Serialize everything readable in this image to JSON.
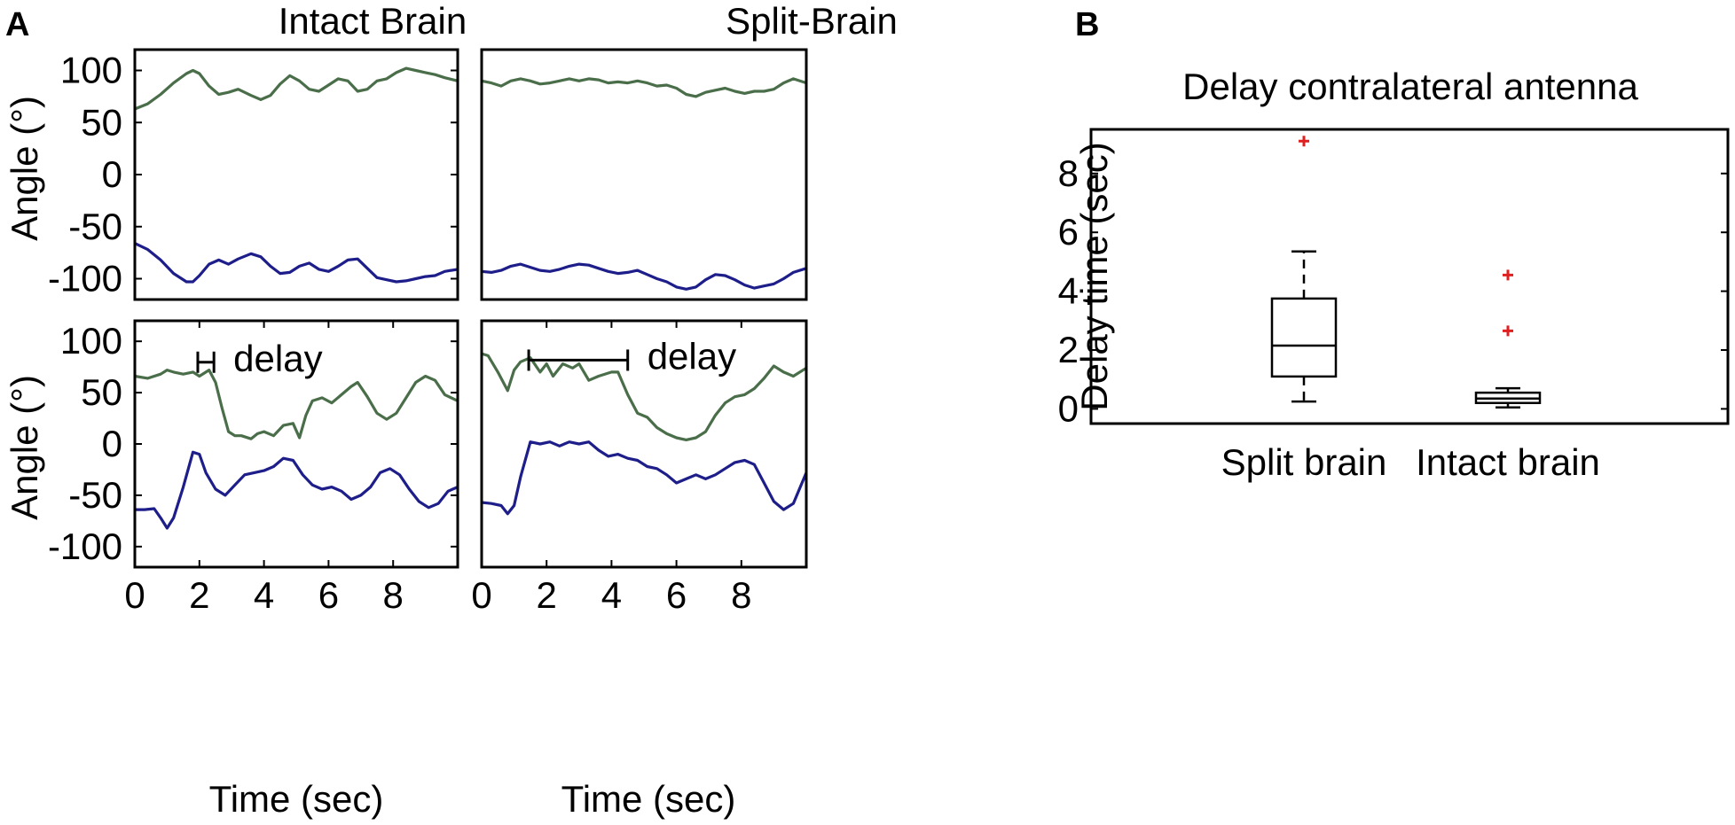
{
  "figure": {
    "panel_a_label": "A",
    "panel_b_label": "B",
    "col_titles": [
      "Intact Brain",
      "Split-Brain"
    ],
    "y_axis_label": "Angle (°)",
    "x_axis_label": "Time (sec)",
    "delay_label": "delay"
  },
  "colors": {
    "ipsilateral": "#4a6e4a",
    "contralateral": "#1e1e8a",
    "outlier": "#e02020",
    "axes": "#000000"
  },
  "chart_data": [
    {
      "id": "intact-top",
      "type": "line",
      "title": "Intact Brain",
      "xlabel": "",
      "ylabel": "Angle (°)",
      "xlim": [
        0,
        10
      ],
      "ylim": [
        -120,
        120
      ],
      "xticks": [],
      "yticks": [
        100,
        50,
        0,
        -50,
        -100
      ],
      "series": [
        {
          "name": "green",
          "x": [
            0,
            0.4,
            0.8,
            1.2,
            1.6,
            1.8,
            2.0,
            2.3,
            2.6,
            2.9,
            3.2,
            3.6,
            3.9,
            4.2,
            4.5,
            4.8,
            5.1,
            5.4,
            5.7,
            6.0,
            6.3,
            6.6,
            6.9,
            7.2,
            7.5,
            7.8,
            8.1,
            8.4,
            8.7,
            9.0,
            9.3,
            9.6,
            10.0
          ],
          "y": [
            63,
            68,
            77,
            88,
            97,
            100,
            97,
            85,
            77,
            79,
            82,
            76,
            72,
            76,
            87,
            95,
            90,
            82,
            80,
            86,
            92,
            90,
            80,
            82,
            90,
            92,
            98,
            102,
            100,
            98,
            96,
            93,
            90
          ]
        },
        {
          "name": "blue",
          "x": [
            0,
            0.4,
            0.8,
            1.2,
            1.6,
            1.8,
            2.0,
            2.3,
            2.6,
            2.9,
            3.2,
            3.6,
            3.9,
            4.2,
            4.5,
            4.8,
            5.1,
            5.4,
            5.7,
            6.0,
            6.3,
            6.6,
            6.9,
            7.2,
            7.5,
            7.8,
            8.1,
            8.4,
            8.7,
            9.0,
            9.3,
            9.6,
            10.0
          ],
          "y": [
            -66,
            -72,
            -82,
            -95,
            -103,
            -103,
            -97,
            -86,
            -82,
            -86,
            -81,
            -76,
            -79,
            -88,
            -95,
            -94,
            -88,
            -85,
            -91,
            -93,
            -88,
            -82,
            -81,
            -90,
            -99,
            -101,
            -103,
            -102,
            -100,
            -98,
            -97,
            -93,
            -91
          ]
        }
      ]
    },
    {
      "id": "split-top",
      "type": "line",
      "title": "Split-Brain",
      "xlabel": "",
      "ylabel": "",
      "xlim": [
        0,
        10
      ],
      "ylim": [
        -120,
        120
      ],
      "xticks": [],
      "yticks": [],
      "series": [
        {
          "name": "green",
          "x": [
            0,
            0.3,
            0.6,
            0.9,
            1.2,
            1.5,
            1.8,
            2.1,
            2.4,
            2.7,
            3.0,
            3.3,
            3.6,
            3.9,
            4.2,
            4.5,
            4.8,
            5.1,
            5.4,
            5.7,
            6.0,
            6.3,
            6.6,
            6.9,
            7.2,
            7.5,
            7.8,
            8.1,
            8.4,
            8.7,
            9.0,
            9.3,
            9.6,
            10.0
          ],
          "y": [
            90,
            88,
            85,
            90,
            92,
            90,
            87,
            88,
            90,
            92,
            90,
            92,
            91,
            88,
            89,
            88,
            90,
            88,
            85,
            86,
            83,
            77,
            75,
            79,
            81,
            83,
            80,
            78,
            80,
            80,
            82,
            88,
            92,
            88
          ]
        },
        {
          "name": "blue",
          "x": [
            0,
            0.3,
            0.6,
            0.9,
            1.2,
            1.5,
            1.8,
            2.1,
            2.4,
            2.7,
            3.0,
            3.3,
            3.6,
            3.9,
            4.2,
            4.5,
            4.8,
            5.1,
            5.4,
            5.7,
            6.0,
            6.3,
            6.6,
            6.9,
            7.2,
            7.5,
            7.8,
            8.1,
            8.4,
            8.7,
            9.0,
            9.3,
            9.6,
            10.0
          ],
          "y": [
            -93,
            -94,
            -92,
            -88,
            -86,
            -89,
            -92,
            -93,
            -91,
            -88,
            -86,
            -87,
            -90,
            -93,
            -95,
            -94,
            -92,
            -96,
            -100,
            -103,
            -108,
            -110,
            -108,
            -101,
            -96,
            -97,
            -101,
            -106,
            -109,
            -107,
            -105,
            -100,
            -94,
            -90
          ]
        }
      ]
    },
    {
      "id": "intact-bottom",
      "type": "line",
      "title": "",
      "xlabel": "Time (sec)",
      "ylabel": "Angle (°)",
      "xlim": [
        0,
        10
      ],
      "ylim": [
        -120,
        120
      ],
      "xticks": [
        0,
        2,
        4,
        6,
        8
      ],
      "yticks": [
        100,
        50,
        0,
        -50,
        -100
      ],
      "delay_marker": {
        "x_start": 1.95,
        "x_end": 2.45,
        "y": 90,
        "label": "delay"
      },
      "series": [
        {
          "name": "green",
          "x": [
            0,
            0.4,
            0.8,
            1.0,
            1.2,
            1.5,
            1.8,
            2.0,
            2.3,
            2.5,
            2.7,
            2.9,
            3.1,
            3.3,
            3.6,
            3.8,
            4.0,
            4.3,
            4.6,
            4.9,
            5.1,
            5.3,
            5.5,
            5.8,
            6.1,
            6.4,
            6.7,
            6.9,
            7.2,
            7.5,
            7.8,
            8.1,
            8.4,
            8.7,
            9.0,
            9.3,
            9.6,
            10.0
          ],
          "y": [
            66,
            64,
            68,
            72,
            70,
            68,
            70,
            66,
            72,
            60,
            35,
            12,
            8,
            8,
            5,
            10,
            12,
            8,
            18,
            20,
            6,
            28,
            42,
            45,
            40,
            48,
            56,
            60,
            46,
            30,
            24,
            30,
            45,
            60,
            66,
            62,
            48,
            42
          ]
        },
        {
          "name": "blue",
          "x": [
            0,
            0.3,
            0.6,
            0.8,
            1.0,
            1.2,
            1.5,
            1.8,
            2.0,
            2.2,
            2.5,
            2.8,
            3.1,
            3.4,
            3.7,
            4.0,
            4.3,
            4.6,
            4.9,
            5.2,
            5.5,
            5.8,
            6.1,
            6.4,
            6.7,
            7.0,
            7.3,
            7.6,
            7.9,
            8.2,
            8.5,
            8.8,
            9.1,
            9.4,
            9.7,
            10.0
          ],
          "y": [
            -64,
            -64,
            -63,
            -72,
            -82,
            -72,
            -42,
            -8,
            -10,
            -28,
            -44,
            -50,
            -40,
            -30,
            -28,
            -26,
            -22,
            -14,
            -16,
            -30,
            -40,
            -44,
            -42,
            -46,
            -54,
            -50,
            -42,
            -28,
            -24,
            -30,
            -44,
            -56,
            -62,
            -58,
            -46,
            -42
          ]
        }
      ]
    },
    {
      "id": "split-bottom",
      "type": "line",
      "title": "",
      "xlabel": "Time (sec)",
      "ylabel": "",
      "xlim": [
        0,
        10
      ],
      "ylim": [
        -120,
        120
      ],
      "xticks": [
        0,
        2,
        4,
        6,
        8
      ],
      "yticks": [],
      "delay_marker": {
        "x_start": 1.45,
        "x_end": 4.5,
        "y": 92,
        "label": "delay"
      },
      "series": [
        {
          "name": "green",
          "x": [
            0,
            0.2,
            0.5,
            0.8,
            1.0,
            1.2,
            1.5,
            1.8,
            2.0,
            2.2,
            2.5,
            2.8,
            3.0,
            3.3,
            3.6,
            4.0,
            4.2,
            4.5,
            4.8,
            5.1,
            5.4,
            5.7,
            6.0,
            6.3,
            6.6,
            6.9,
            7.2,
            7.5,
            7.8,
            8.1,
            8.4,
            8.7,
            9.0,
            9.3,
            9.6,
            10.0
          ],
          "y": [
            88,
            86,
            70,
            52,
            72,
            80,
            84,
            70,
            78,
            66,
            78,
            74,
            78,
            62,
            66,
            70,
            70,
            48,
            30,
            26,
            16,
            10,
            6,
            4,
            6,
            12,
            28,
            40,
            46,
            48,
            54,
            64,
            76,
            70,
            66,
            74
          ]
        },
        {
          "name": "blue",
          "x": [
            0,
            0.3,
            0.6,
            0.8,
            1.0,
            1.2,
            1.5,
            1.8,
            2.1,
            2.4,
            2.7,
            3.0,
            3.3,
            3.6,
            3.9,
            4.2,
            4.5,
            4.8,
            5.1,
            5.4,
            5.7,
            6.0,
            6.3,
            6.6,
            6.9,
            7.2,
            7.5,
            7.8,
            8.1,
            8.4,
            8.7,
            9.0,
            9.3,
            9.6,
            10.0
          ],
          "y": [
            -57,
            -58,
            -60,
            -68,
            -60,
            -32,
            2,
            0,
            2,
            -2,
            2,
            0,
            2,
            -6,
            -12,
            -10,
            -14,
            -16,
            -22,
            -24,
            -30,
            -38,
            -34,
            -30,
            -34,
            -30,
            -24,
            -18,
            -16,
            -20,
            -38,
            -56,
            -64,
            -58,
            -28
          ]
        }
      ]
    },
    {
      "id": "boxplot",
      "type": "box",
      "title": "Delay contralateral antenna",
      "xlabel": "",
      "ylabel": "Delay time (sec)",
      "ylim": [
        -0.5,
        9.5
      ],
      "yticks": [
        0,
        2,
        4,
        6,
        8
      ],
      "categories": [
        "Split brain",
        "Intact brain"
      ],
      "boxes": [
        {
          "name": "Split brain",
          "whisker_low": 0.25,
          "q1": 1.1,
          "median": 2.15,
          "q3": 3.75,
          "whisker_high": 5.35,
          "outliers": [
            9.1
          ]
        },
        {
          "name": "Intact brain",
          "whisker_low": 0.05,
          "q1": 0.2,
          "median": 0.35,
          "q3": 0.55,
          "whisker_high": 0.7,
          "outliers": [
            4.55,
            2.65
          ]
        }
      ]
    }
  ]
}
